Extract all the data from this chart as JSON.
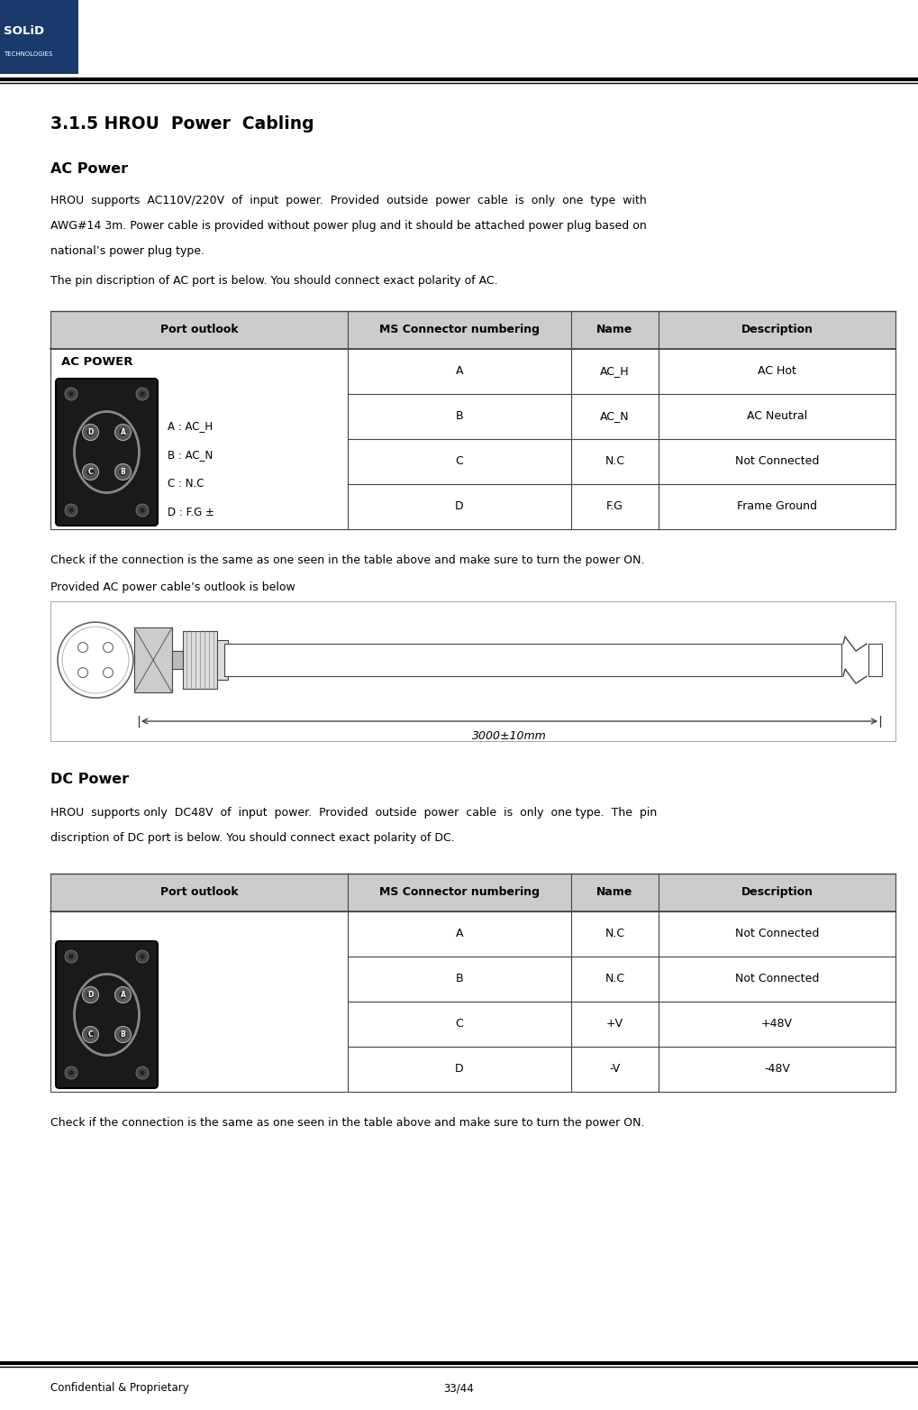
{
  "page_width": 10.19,
  "page_height": 15.64,
  "bg_color": "#ffffff",
  "header_bar_color": "#1a3a6b",
  "section_title": "3.1.5 HROU  Power  Cabling",
  "ac_power_title": "AC Power",
  "ac_lines": [
    "HROU  supports  AC110V/220V  of  input  power.  Provided  outside  power  cable  is  only  one  type  with",
    "AWG#14 3m. Power cable is provided without power plug and it should be attached power plug based on",
    "national’s power plug type."
  ],
  "ac_para2": "The pin discription of AC port is below. You should connect exact polarity of AC.",
  "ac_table_header": [
    "Port outlook",
    "MS Connector numbering",
    "Name",
    "Description"
  ],
  "ac_table_rows": [
    [
      "A",
      "AC_H",
      "AC Hot"
    ],
    [
      "B",
      "AC_N",
      "AC Neutral"
    ],
    [
      "C",
      "N.C",
      "Not Connected"
    ],
    [
      "D",
      "F.G",
      "Frame Ground"
    ]
  ],
  "ac_connector_labels": [
    "A : AC_H",
    "B : AC_N",
    "C : N.C",
    "D : F.G ±"
  ],
  "ac_check_text": "Check if the connection is the same as one seen in the table above and make sure to turn the power ON.",
  "ac_cable_text": "Provided AC power cable’s outlook is below",
  "dc_power_title": "DC Power",
  "dc_lines": [
    "HROU  supports only  DC48V  of  input  power.  Provided  outside  power  cable  is  only  one type.  The  pin",
    "discription of DC port is below. You should connect exact polarity of DC."
  ],
  "dc_table_header": [
    "Port outlook",
    "MS Connector numbering",
    "Name",
    "Description"
  ],
  "dc_table_rows": [
    [
      "A",
      "N.C",
      "Not Connected"
    ],
    [
      "B",
      "N.C",
      "Not Connected"
    ],
    [
      "C",
      "+V",
      "+48V"
    ],
    [
      "D",
      "-V",
      "-48V"
    ]
  ],
  "dc_check_text": "Check if the connection is the same as one seen in the table above and make sure to turn the power ON.",
  "footer_left": "Confidential & Proprietary",
  "footer_right": "33/44",
  "table_header_bg": "#cccccc",
  "table_border_color": "#444444"
}
